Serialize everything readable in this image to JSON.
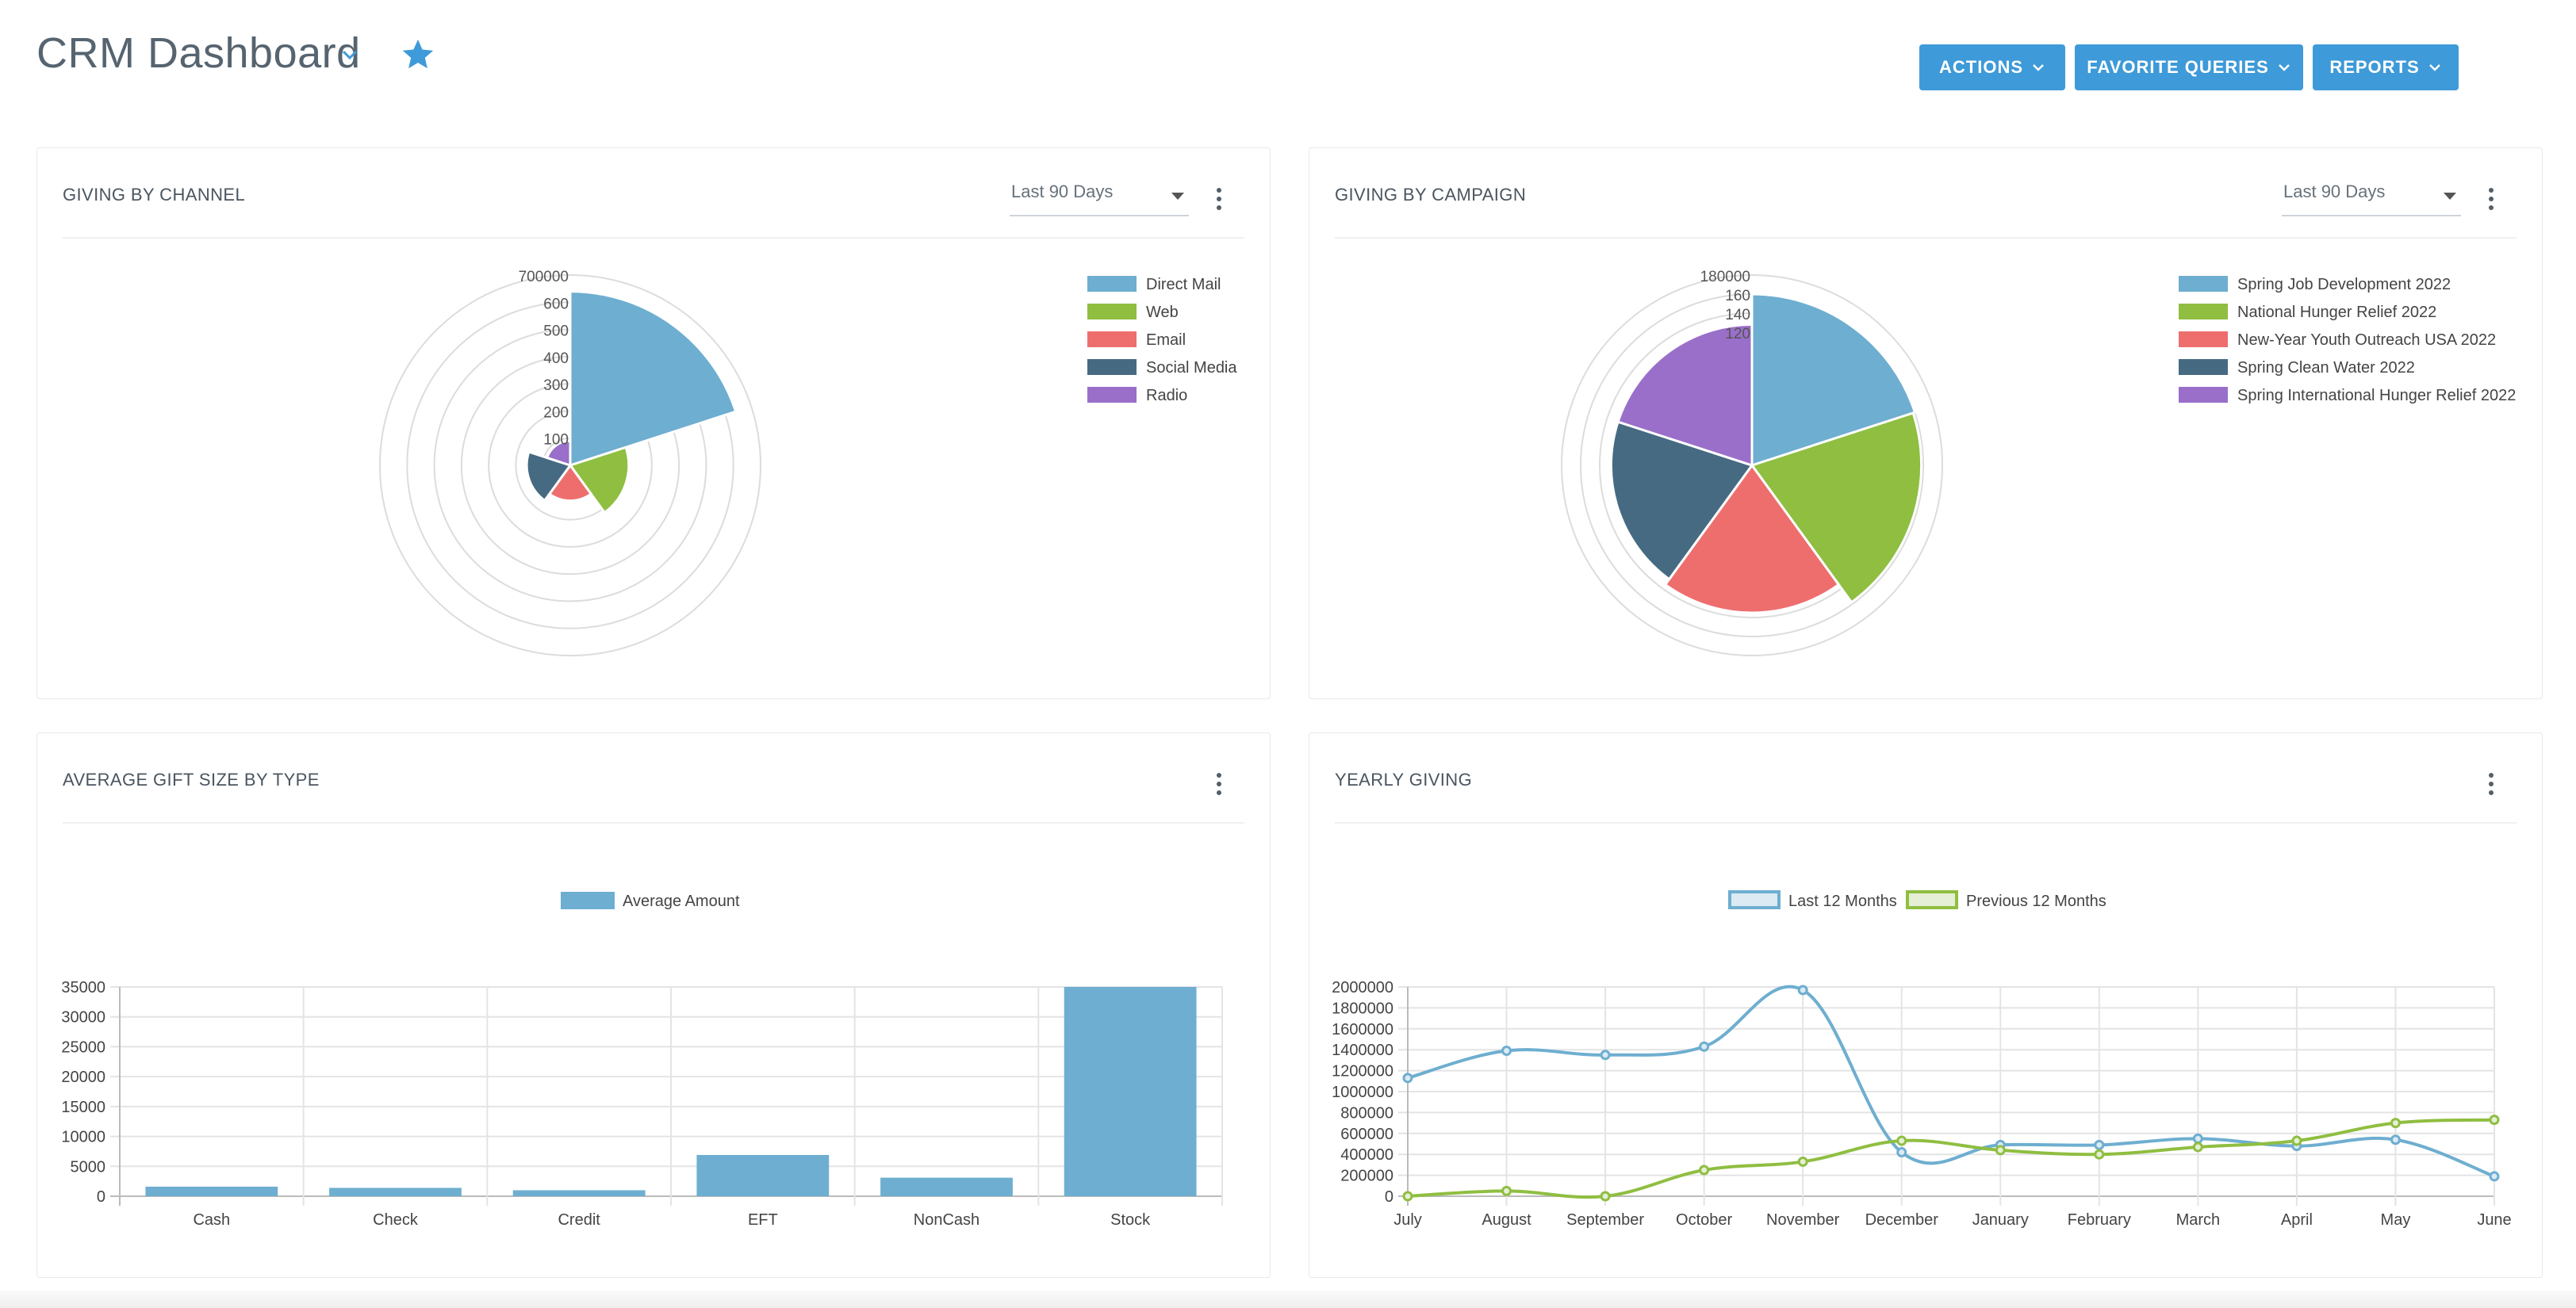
{
  "header": {
    "title": "CRM Dashboard",
    "buttons": [
      {
        "label": "ACTIONS"
      },
      {
        "label": "FAVORITE QUERIES"
      },
      {
        "label": "REPORTS"
      }
    ]
  },
  "colors": {
    "accent": "#3e9ad8",
    "series": [
      "#6eaed0",
      "#8fbe41",
      "#ee6e6e",
      "#466a82",
      "#9a6fca"
    ]
  },
  "cards": {
    "channel": {
      "title": "GIVING BY CHANNEL",
      "range": "Last 90 Days"
    },
    "campaign": {
      "title": "GIVING BY CAMPAIGN",
      "range": "Last 90 Days"
    },
    "gift": {
      "title": "AVERAGE GIFT SIZE BY TYPE"
    },
    "yearly": {
      "title": "YEARLY GIVING"
    }
  },
  "chart_data": [
    {
      "type": "polar-area",
      "title": "GIVING BY CHANNEL",
      "categories": [
        "Direct Mail",
        "Web",
        "Email",
        "Social Media",
        "Radio"
      ],
      "values": [
        640000,
        215000,
        130000,
        160000,
        90000
      ],
      "r_ticks": [
        "100",
        "200",
        "300",
        "400",
        "500",
        "600",
        "700000"
      ],
      "r_max": 700000,
      "legend": "right"
    },
    {
      "type": "polar-area",
      "title": "GIVING BY CAMPAIGN",
      "categories": [
        "Spring Job Development 2022",
        "National Hunger Relief 2022",
        "New-Year Youth Outreach USA 2022",
        "Spring Clean Water 2022",
        "Spring International Hunger Relief 2022"
      ],
      "values": [
        180000,
        178000,
        155000,
        148000,
        148000
      ],
      "r_ticks": [
        "120",
        "140",
        "160",
        "180000"
      ],
      "r_max": 200000,
      "legend": "right"
    },
    {
      "type": "bar",
      "title": "AVERAGE GIFT SIZE BY TYPE",
      "categories": [
        "Cash",
        "Check",
        "Credit",
        "EFT",
        "NonCash",
        "Stock"
      ],
      "series": [
        {
          "name": "Average Amount",
          "values": [
            1600,
            1400,
            1000,
            6900,
            3100,
            35000
          ]
        }
      ],
      "yticks": [
        "0",
        "5000",
        "10000",
        "15000",
        "20000",
        "25000",
        "30000",
        "35000"
      ],
      "ylim": [
        0,
        35000
      ],
      "legend": "top"
    },
    {
      "type": "line",
      "title": "YEARLY GIVING",
      "categories": [
        "July",
        "August",
        "September",
        "October",
        "November",
        "December",
        "January",
        "February",
        "March",
        "April",
        "May",
        "June"
      ],
      "series": [
        {
          "name": "Last 12 Months",
          "values": [
            1130000,
            1390000,
            1350000,
            1430000,
            1970000,
            420000,
            490000,
            490000,
            550000,
            480000,
            540000,
            190000
          ]
        },
        {
          "name": "Previous 12 Months",
          "values": [
            0,
            50000,
            0,
            250000,
            330000,
            530000,
            440000,
            400000,
            470000,
            530000,
            700000,
            730000
          ]
        }
      ],
      "yticks": [
        "0",
        "200000",
        "400000",
        "600000",
        "800000",
        "1000000",
        "1200000",
        "1400000",
        "1600000",
        "1800000",
        "2000000"
      ],
      "ylim": [
        0,
        2000000
      ],
      "legend": "top"
    }
  ]
}
